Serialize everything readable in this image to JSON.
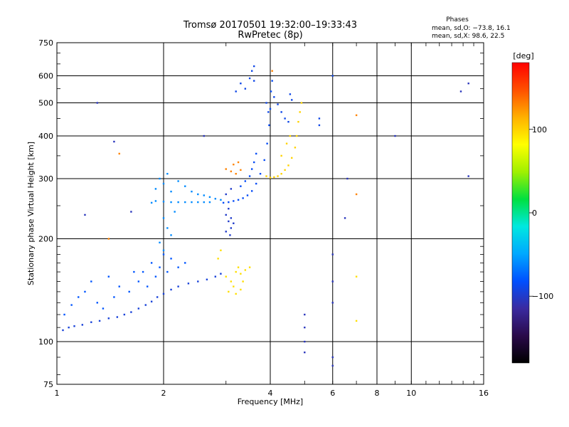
{
  "chart_data": {
    "type": "scatter",
    "title": "Tromsø 20170501 19:32:00–19:33:43",
    "subtitle": "RwPretec (8p)",
    "xlabel": "Frequency [MHz]",
    "ylabel": "Stationary phase Virtual Height [km]",
    "x_scale": "log",
    "y_scale": "log",
    "xlim": [
      1,
      16
    ],
    "ylim": [
      75,
      750
    ],
    "x_ticks": [
      1,
      2,
      4,
      6,
      8,
      10,
      16
    ],
    "x_tick_labels": [
      "1",
      "2",
      "4",
      "6",
      "8",
      "10",
      "16"
    ],
    "y_ticks": [
      75,
      100,
      200,
      300,
      400,
      500,
      600,
      750
    ],
    "y_tick_labels": [
      "75",
      "100",
      "200",
      "300",
      "400",
      "500",
      "600",
      "750"
    ],
    "grid": true,
    "phases_box": {
      "title": "Phases",
      "line1": "mean, sd,O: −73.8, 16.1",
      "line2": "mean, sd,X:  98.6, 22.5"
    },
    "colorbar": {
      "label": "[deg]",
      "range": [
        -180,
        180
      ],
      "ticks": [
        100,
        0,
        -100
      ],
      "tick_labels": [
        "100",
        "0",
        "−100"
      ],
      "colors": [
        "#000000",
        "#2a0a4a",
        "#3a2aa0",
        "#0050ff",
        "#00a8ff",
        "#00e8e0",
        "#00e040",
        "#a0f000",
        "#ffff00",
        "#ffb000",
        "#ff5000",
        "#ff0000"
      ]
    },
    "series": [
      {
        "id": "o-lower-trace",
        "phase": -95,
        "points": [
          [
            1.04,
            108
          ],
          [
            1.08,
            110
          ],
          [
            1.12,
            111
          ],
          [
            1.18,
            112
          ],
          [
            1.25,
            114
          ],
          [
            1.32,
            115
          ],
          [
            1.4,
            117
          ],
          [
            1.48,
            118
          ],
          [
            1.55,
            120
          ],
          [
            1.62,
            122
          ],
          [
            1.7,
            125
          ],
          [
            1.78,
            128
          ],
          [
            1.85,
            131
          ],
          [
            1.92,
            135
          ],
          [
            2.0,
            138
          ],
          [
            2.1,
            142
          ],
          [
            2.2,
            145
          ],
          [
            2.35,
            148
          ],
          [
            2.5,
            150
          ],
          [
            2.65,
            152
          ],
          [
            2.8,
            155
          ],
          [
            2.9,
            158
          ]
        ]
      },
      {
        "id": "o-lower-scatter",
        "phase": -80,
        "points": [
          [
            1.05,
            120
          ],
          [
            1.1,
            128
          ],
          [
            1.15,
            135
          ],
          [
            1.2,
            140
          ],
          [
            1.3,
            130
          ],
          [
            1.35,
            125
          ],
          [
            1.45,
            135
          ],
          [
            1.5,
            145
          ],
          [
            1.6,
            140
          ],
          [
            1.7,
            150
          ],
          [
            1.75,
            160
          ],
          [
            1.8,
            145
          ],
          [
            1.85,
            170
          ],
          [
            1.9,
            155
          ],
          [
            1.95,
            165
          ],
          [
            2.0,
            180
          ],
          [
            2.05,
            160
          ],
          [
            2.1,
            175
          ],
          [
            2.2,
            165
          ],
          [
            2.3,
            170
          ],
          [
            1.25,
            150
          ],
          [
            1.4,
            155
          ],
          [
            1.65,
            160
          ]
        ]
      },
      {
        "id": "f1-cusp",
        "phase": -60,
        "points": [
          [
            1.85,
            255
          ],
          [
            1.9,
            258
          ],
          [
            2.0,
            257
          ],
          [
            2.1,
            256
          ],
          [
            2.2,
            256
          ],
          [
            2.3,
            256
          ],
          [
            2.4,
            256
          ],
          [
            2.5,
            256
          ],
          [
            2.6,
            256
          ],
          [
            2.7,
            256
          ],
          [
            1.9,
            280
          ],
          [
            1.95,
            300
          ],
          [
            2.0,
            290
          ],
          [
            2.05,
            310
          ],
          [
            2.1,
            275
          ],
          [
            2.2,
            295
          ],
          [
            2.3,
            285
          ],
          [
            2.4,
            275
          ],
          [
            2.5,
            270
          ],
          [
            2.6,
            268
          ],
          [
            2.7,
            265
          ],
          [
            2.8,
            262
          ],
          [
            2.9,
            260
          ],
          [
            2.0,
            230
          ],
          [
            2.05,
            215
          ],
          [
            2.1,
            205
          ],
          [
            1.95,
            195
          ],
          [
            2.0,
            185
          ],
          [
            2.15,
            240
          ]
        ]
      },
      {
        "id": "o-f2-trace",
        "phase": -85,
        "points": [
          [
            2.95,
            255
          ],
          [
            3.05,
            256
          ],
          [
            3.15,
            258
          ],
          [
            3.25,
            260
          ],
          [
            3.35,
            263
          ],
          [
            3.45,
            268
          ],
          [
            3.55,
            276
          ],
          [
            3.65,
            290
          ],
          [
            3.75,
            310
          ],
          [
            3.85,
            340
          ],
          [
            3.92,
            380
          ],
          [
            3.97,
            430
          ],
          [
            4.0,
            480
          ],
          [
            4.02,
            540
          ],
          [
            4.05,
            580
          ],
          [
            3.3,
            285
          ],
          [
            3.4,
            295
          ],
          [
            3.5,
            305
          ],
          [
            3.55,
            320
          ],
          [
            3.6,
            335
          ],
          [
            3.65,
            355
          ]
        ]
      },
      {
        "id": "o-spread-f",
        "phase": -100,
        "points": [
          [
            3.0,
            235
          ],
          [
            3.05,
            225
          ],
          [
            3.1,
            215
          ],
          [
            3.0,
            210
          ],
          [
            3.05,
            245
          ],
          [
            3.1,
            230
          ],
          [
            3.15,
            222
          ],
          [
            3.08,
            205
          ],
          [
            3.0,
            270
          ],
          [
            3.1,
            280
          ]
        ]
      },
      {
        "id": "o-high",
        "phase": -90,
        "points": [
          [
            3.5,
            590
          ],
          [
            3.6,
            580
          ],
          [
            3.4,
            550
          ],
          [
            3.55,
            620
          ],
          [
            3.6,
            640
          ],
          [
            3.3,
            570
          ],
          [
            3.2,
            540
          ],
          [
            3.9,
            500
          ],
          [
            3.95,
            470
          ],
          [
            4.1,
            520
          ],
          [
            4.2,
            495
          ],
          [
            4.3,
            470
          ],
          [
            4.4,
            450
          ],
          [
            4.5,
            440
          ],
          [
            4.55,
            530
          ],
          [
            4.6,
            510
          ],
          [
            5.5,
            450
          ],
          [
            5.5,
            430
          ],
          [
            6.0,
            600
          ]
        ]
      },
      {
        "id": "x-trace",
        "phase": 100,
        "points": [
          [
            3.9,
            305
          ],
          [
            4.0,
            302
          ],
          [
            4.1,
            303
          ],
          [
            4.2,
            305
          ],
          [
            4.3,
            310
          ],
          [
            4.4,
            318
          ],
          [
            4.5,
            328
          ],
          [
            4.6,
            345
          ],
          [
            4.7,
            370
          ],
          [
            4.75,
            400
          ],
          [
            4.8,
            440
          ],
          [
            4.85,
            470
          ],
          [
            4.9,
            500
          ],
          [
            4.3,
            350
          ],
          [
            4.45,
            380
          ],
          [
            4.55,
            400
          ]
        ]
      },
      {
        "id": "x-orange-clusters",
        "phase": 130,
        "points": [
          [
            3.0,
            320
          ],
          [
            3.1,
            315
          ],
          [
            3.2,
            310
          ],
          [
            3.3,
            318
          ],
          [
            3.15,
            330
          ],
          [
            3.25,
            335
          ],
          [
            4.05,
            620
          ],
          [
            7.0,
            460
          ],
          [
            7.0,
            270
          ],
          [
            1.5,
            355
          ],
          [
            1.4,
            200
          ]
        ]
      },
      {
        "id": "x-yellow-cluster",
        "phase": 95,
        "points": [
          [
            3.0,
            155
          ],
          [
            3.1,
            150
          ],
          [
            3.15,
            145
          ],
          [
            3.2,
            160
          ],
          [
            3.25,
            165
          ],
          [
            3.3,
            158
          ],
          [
            3.35,
            150
          ],
          [
            3.4,
            162
          ],
          [
            3.5,
            165
          ],
          [
            3.05,
            140
          ],
          [
            3.2,
            138
          ],
          [
            3.3,
            142
          ],
          [
            2.85,
            175
          ],
          [
            2.9,
            185
          ],
          [
            7.0,
            155
          ],
          [
            7.0,
            115
          ]
        ]
      },
      {
        "id": "o-isolated",
        "phase": -105,
        "points": [
          [
            1.3,
            500
          ],
          [
            1.45,
            385
          ],
          [
            1.2,
            235
          ],
          [
            6.0,
            180
          ],
          [
            6.0,
            150
          ],
          [
            6.0,
            130
          ],
          [
            6.0,
            90
          ],
          [
            6.0,
            85
          ],
          [
            5.0,
            120
          ],
          [
            5.0,
            110
          ],
          [
            5.0,
            100
          ],
          [
            5.0,
            93
          ],
          [
            6.5,
            230
          ],
          [
            6.6,
            300
          ],
          [
            14.5,
            305
          ],
          [
            13.8,
            540
          ],
          [
            14.5,
            570
          ],
          [
            9.0,
            400
          ],
          [
            1.62,
            240
          ],
          [
            2.6,
            400
          ]
        ]
      }
    ]
  }
}
